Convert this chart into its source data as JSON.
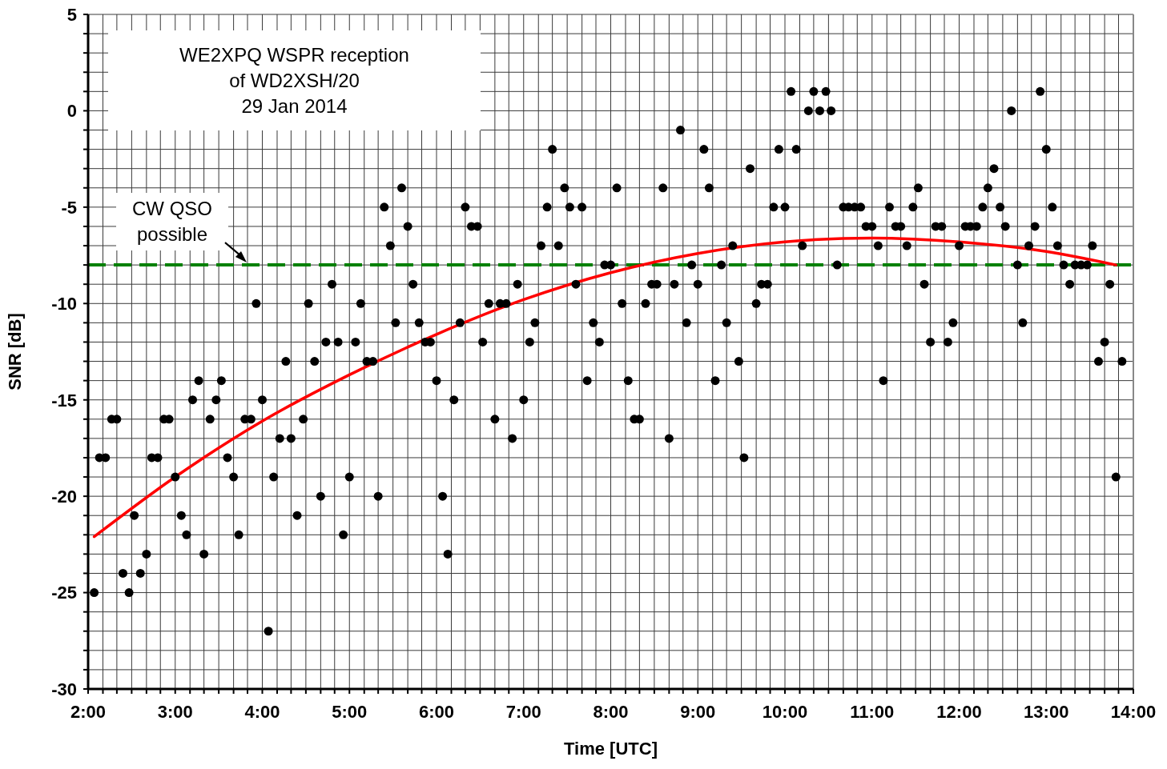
{
  "chart_data": {
    "type": "scatter",
    "title": "WE2XPQ WSPR reception of WD2XSH/20",
    "subtitle": "29 Jan 2014",
    "xlabel": "Time [UTC]",
    "ylabel": "SNR [dB]",
    "x": [
      2.07,
      2.13,
      2.2,
      2.27,
      2.33,
      2.4,
      2.47,
      2.53,
      2.6,
      2.67,
      2.73,
      2.8,
      2.87,
      2.93,
      3,
      3.07,
      3.13,
      3.2,
      3.27,
      3.33,
      3.4,
      3.47,
      3.53,
      3.6,
      3.67,
      3.73,
      3.8,
      3.87,
      3.93,
      4,
      4.07,
      4.13,
      4.2,
      4.27,
      4.33,
      4.4,
      4.47,
      4.53,
      4.6,
      4.67,
      4.73,
      4.8,
      4.87,
      4.93,
      5,
      5.07,
      5.13,
      5.2,
      5.27,
      5.33,
      5.4,
      5.47,
      5.53,
      5.6,
      5.67,
      5.73,
      5.8,
      5.87,
      5.93,
      6,
      6.07,
      6.13,
      6.2,
      6.27,
      6.33,
      6.4,
      6.47,
      6.53,
      6.6,
      6.67,
      6.73,
      6.8,
      6.87,
      6.93,
      7,
      7.07,
      7.13,
      7.2,
      7.27,
      7.33,
      7.4,
      7.47,
      7.53,
      7.6,
      7.67,
      7.73,
      7.8,
      7.87,
      7.93,
      8,
      8.07,
      8.13,
      8.2,
      8.27,
      8.33,
      8.4,
      8.47,
      8.53,
      8.6,
      8.67,
      8.73,
      8.8,
      8.87,
      8.93,
      9,
      9.07,
      9.13,
      9.2,
      9.27,
      9.33,
      9.4,
      9.47,
      9.53,
      9.6,
      9.67,
      9.73,
      9.8,
      9.87,
      9.93,
      10,
      10.07,
      10.13,
      10.2,
      10.27,
      10.33,
      10.4,
      10.47,
      10.53,
      10.6,
      10.67,
      10.73,
      10.8,
      10.87,
      10.93,
      11,
      11.07,
      11.13,
      11.2,
      11.27,
      11.33,
      11.4,
      11.47,
      11.53,
      11.6,
      11.67,
      11.73,
      11.8,
      11.87,
      11.93,
      12,
      12.07,
      12.13,
      12.2,
      12.27,
      12.33,
      12.4,
      12.47,
      12.53,
      12.6,
      12.67,
      12.73,
      12.8,
      12.87,
      12.93,
      13,
      13.07,
      13.13,
      13.2,
      13.27,
      13.33,
      13.4,
      13.47,
      13.53,
      13.6,
      13.67,
      13.73,
      13.8,
      13.87
    ],
    "series": [
      {
        "color": "#000000",
        "marker": "circle",
        "values": [
          -25,
          -18,
          -18,
          -16,
          -16,
          -24,
          -25,
          -21,
          -24,
          -23,
          -18,
          -18,
          -16,
          -16,
          -19,
          -21,
          -22,
          -15,
          -14,
          -23,
          -16,
          -15,
          -14,
          -18,
          -19,
          -22,
          -16,
          -16,
          -10,
          -15,
          -27,
          -19,
          -17,
          -13,
          -17,
          -21,
          -16,
          -10,
          -13,
          -20,
          -12,
          -9,
          -12,
          -22,
          -19,
          -12,
          -10,
          -13,
          -13,
          -20,
          -5,
          -7,
          -11,
          -4,
          -6,
          -9,
          -11,
          -12,
          -12,
          -14,
          -20,
          -23,
          -15,
          -11,
          -5,
          -6,
          -6,
          -12,
          -10,
          -16,
          -10,
          -10,
          -17,
          -9,
          -15,
          -12,
          -11,
          -7,
          -5,
          -2,
          -7,
          -4,
          -5,
          -9,
          -5,
          -14,
          -11,
          -12,
          -8,
          -8,
          -4,
          -10,
          -14,
          -16,
          -16,
          -10,
          -9,
          -9,
          -4,
          -17,
          -9,
          -1,
          -11,
          -8,
          -9,
          -2,
          -4,
          -14,
          -8,
          -11,
          -7,
          -13,
          -18,
          -3,
          -10,
          -9,
          -9,
          -5,
          -2,
          -5,
          1,
          -2,
          -7,
          0,
          1,
          0,
          1,
          0,
          -8,
          -5,
          -5,
          -5,
          -5,
          -6,
          -6,
          -7,
          -14,
          -5,
          -6,
          -6,
          -7,
          -5,
          -4,
          -9,
          -12,
          -6,
          -6,
          -12,
          -11,
          -7,
          -6,
          -6,
          -6,
          -5,
          -4,
          -3,
          -5,
          -6,
          0,
          -8,
          -11,
          -7,
          -6,
          1,
          -2,
          -5,
          -7,
          -8,
          -9,
          -8,
          -8,
          -8,
          -7,
          -13,
          -12,
          -9,
          -19,
          -13
        ]
      },
      {
        "type": "line",
        "color": "#ff0000",
        "x": [
          2.07,
          3,
          4,
          5,
          6,
          7,
          8,
          9,
          10,
          11,
          12,
          13,
          13.8
        ],
        "values": [
          -22.1,
          -19.0,
          -16.1,
          -13.7,
          -11.6,
          -9.8,
          -8.4,
          -7.4,
          -6.8,
          -6.6,
          -6.8,
          -7.3,
          -8.0
        ]
      }
    ],
    "xlim": [
      2,
      14
    ],
    "ylim": [
      -30,
      5
    ],
    "xticks": [
      {
        "value": 2,
        "label": "2:00"
      },
      {
        "value": 2.17,
        "label": null
      },
      {
        "value": 2.33,
        "label": null
      },
      {
        "value": 2.5,
        "label": null
      },
      {
        "value": 2.67,
        "label": null
      },
      {
        "value": 2.83,
        "label": null
      },
      {
        "value": 3,
        "label": "3:00"
      },
      {
        "value": 3.17,
        "label": null
      },
      {
        "value": 3.33,
        "label": null
      },
      {
        "value": 3.5,
        "label": null
      },
      {
        "value": 3.67,
        "label": null
      },
      {
        "value": 3.83,
        "label": null
      },
      {
        "value": 4,
        "label": "4:00"
      },
      {
        "value": 4.17,
        "label": null
      },
      {
        "value": 4.33,
        "label": null
      },
      {
        "value": 4.5,
        "label": null
      },
      {
        "value": 4.67,
        "label": null
      },
      {
        "value": 4.83,
        "label": null
      },
      {
        "value": 5,
        "label": "5:00"
      },
      {
        "value": 5.17,
        "label": null
      },
      {
        "value": 5.33,
        "label": null
      },
      {
        "value": 5.5,
        "label": null
      },
      {
        "value": 5.67,
        "label": null
      },
      {
        "value": 5.83,
        "label": null
      },
      {
        "value": 6,
        "label": "6:00"
      },
      {
        "value": 6.17,
        "label": null
      },
      {
        "value": 6.33,
        "label": null
      },
      {
        "value": 6.5,
        "label": null
      },
      {
        "value": 6.67,
        "label": null
      },
      {
        "value": 6.83,
        "label": null
      },
      {
        "value": 7,
        "label": "7:00"
      },
      {
        "value": 7.17,
        "label": null
      },
      {
        "value": 7.33,
        "label": null
      },
      {
        "value": 7.5,
        "label": null
      },
      {
        "value": 7.67,
        "label": null
      },
      {
        "value": 7.83,
        "label": null
      },
      {
        "value": 8,
        "label": "8:00"
      },
      {
        "value": 8.17,
        "label": null
      },
      {
        "value": 8.33,
        "label": null
      },
      {
        "value": 8.5,
        "label": null
      },
      {
        "value": 8.67,
        "label": null
      },
      {
        "value": 8.83,
        "label": null
      },
      {
        "value": 9,
        "label": "9:00"
      },
      {
        "value": 9.17,
        "label": null
      },
      {
        "value": 9.33,
        "label": null
      },
      {
        "value": 9.5,
        "label": null
      },
      {
        "value": 9.67,
        "label": null
      },
      {
        "value": 9.83,
        "label": null
      },
      {
        "value": 10,
        "label": "10:00"
      },
      {
        "value": 10.17,
        "label": null
      },
      {
        "value": 10.33,
        "label": null
      },
      {
        "value": 10.5,
        "label": null
      },
      {
        "value": 10.67,
        "label": null
      },
      {
        "value": 10.83,
        "label": null
      },
      {
        "value": 11,
        "label": "11:00"
      },
      {
        "value": 11.17,
        "label": null
      },
      {
        "value": 11.33,
        "label": null
      },
      {
        "value": 11.5,
        "label": null
      },
      {
        "value": 11.67,
        "label": null
      },
      {
        "value": 11.83,
        "label": null
      },
      {
        "value": 12,
        "label": "12:00"
      },
      {
        "value": 12.17,
        "label": null
      },
      {
        "value": 12.33,
        "label": null
      },
      {
        "value": 12.5,
        "label": null
      },
      {
        "value": 12.67,
        "label": null
      },
      {
        "value": 12.83,
        "label": null
      },
      {
        "value": 13,
        "label": "13:00"
      },
      {
        "value": 13.17,
        "label": null
      },
      {
        "value": 13.33,
        "label": null
      },
      {
        "value": 13.5,
        "label": null
      },
      {
        "value": 13.67,
        "label": null
      },
      {
        "value": 13.83,
        "label": null
      },
      {
        "value": 14,
        "label": "14:00"
      }
    ],
    "yticks": [
      -30,
      {
        "value": -29,
        "label": null
      },
      {
        "value": -28,
        "label": null
      },
      {
        "value": -27,
        "label": null
      },
      {
        "value": -26,
        "label": null
      },
      -25,
      {
        "value": -24,
        "label": null
      },
      {
        "value": -23,
        "label": null
      },
      {
        "value": -22,
        "label": null
      },
      {
        "value": -21,
        "label": null
      },
      -20,
      {
        "value": -19,
        "label": null
      },
      {
        "value": -18,
        "label": null
      },
      {
        "value": -17,
        "label": null
      },
      {
        "value": -16,
        "label": null
      },
      -15,
      {
        "value": -14,
        "label": null
      },
      {
        "value": -13,
        "label": null
      },
      {
        "value": -12,
        "label": null
      },
      {
        "value": -11,
        "label": null
      },
      -10,
      {
        "value": -9,
        "label": null
      },
      {
        "value": -8,
        "label": null
      },
      {
        "value": -7,
        "label": null
      },
      {
        "value": -6,
        "label": null
      },
      -5,
      {
        "value": -4,
        "label": null
      },
      {
        "value": -3,
        "label": null
      },
      {
        "value": -2,
        "label": null
      },
      {
        "value": -1,
        "label": null
      },
      0,
      {
        "value": 1,
        "label": null
      },
      {
        "value": 2,
        "label": null
      },
      {
        "value": 3,
        "label": null
      },
      {
        "value": 4,
        "label": null
      },
      5
    ],
    "grid": true,
    "ref_lines": [
      {
        "axis": "y",
        "value": -8,
        "label": "CW QSO possible",
        "color": "#008000",
        "line_style": "dashed"
      }
    ]
  }
}
